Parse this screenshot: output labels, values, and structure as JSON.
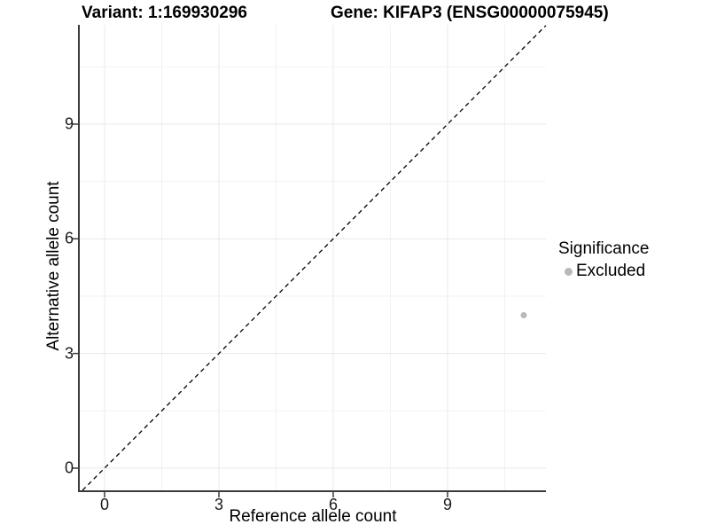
{
  "header": {
    "variant_title": "Variant: 1:169930296",
    "gene_title": "Gene: KIFAP3 (ENSG00000075945)"
  },
  "chart_data": {
    "type": "scatter",
    "title": "Variant: 1:169930296  /  Gene: KIFAP3 (ENSG00000075945)",
    "xlabel": "Reference allele count",
    "ylabel": "Alternative allele count",
    "xticks": [
      0,
      3,
      6,
      9
    ],
    "yticks": [
      0,
      3,
      6,
      9
    ],
    "minor_xticks": [
      1.5,
      4.5,
      7.5,
      10.5
    ],
    "minor_yticks": [
      1.5,
      4.5,
      7.5,
      10.5
    ],
    "xlim": [
      -0.65,
      11.58
    ],
    "ylim": [
      -0.58,
      11.6
    ],
    "grid": "major and minor, light gray on white",
    "series": [
      {
        "name": "Excluded",
        "color": "#b9b9b9",
        "points": [
          [
            11,
            4
          ]
        ]
      }
    ],
    "ref_line": {
      "equation": "y = x",
      "style": "dashed",
      "color": "#000000"
    },
    "legend": {
      "title": "Significance",
      "position": "right",
      "items": [
        {
          "label": "Excluded",
          "color": "#b9b9b9"
        }
      ]
    }
  },
  "colors": {
    "background": "#ffffff",
    "grid_major": "#e8e8e8",
    "grid_minor": "#f2f2f2",
    "axis_line": "#3a3a3a",
    "tick_label": "#1a1a1a",
    "point": "#b9b9b9"
  }
}
